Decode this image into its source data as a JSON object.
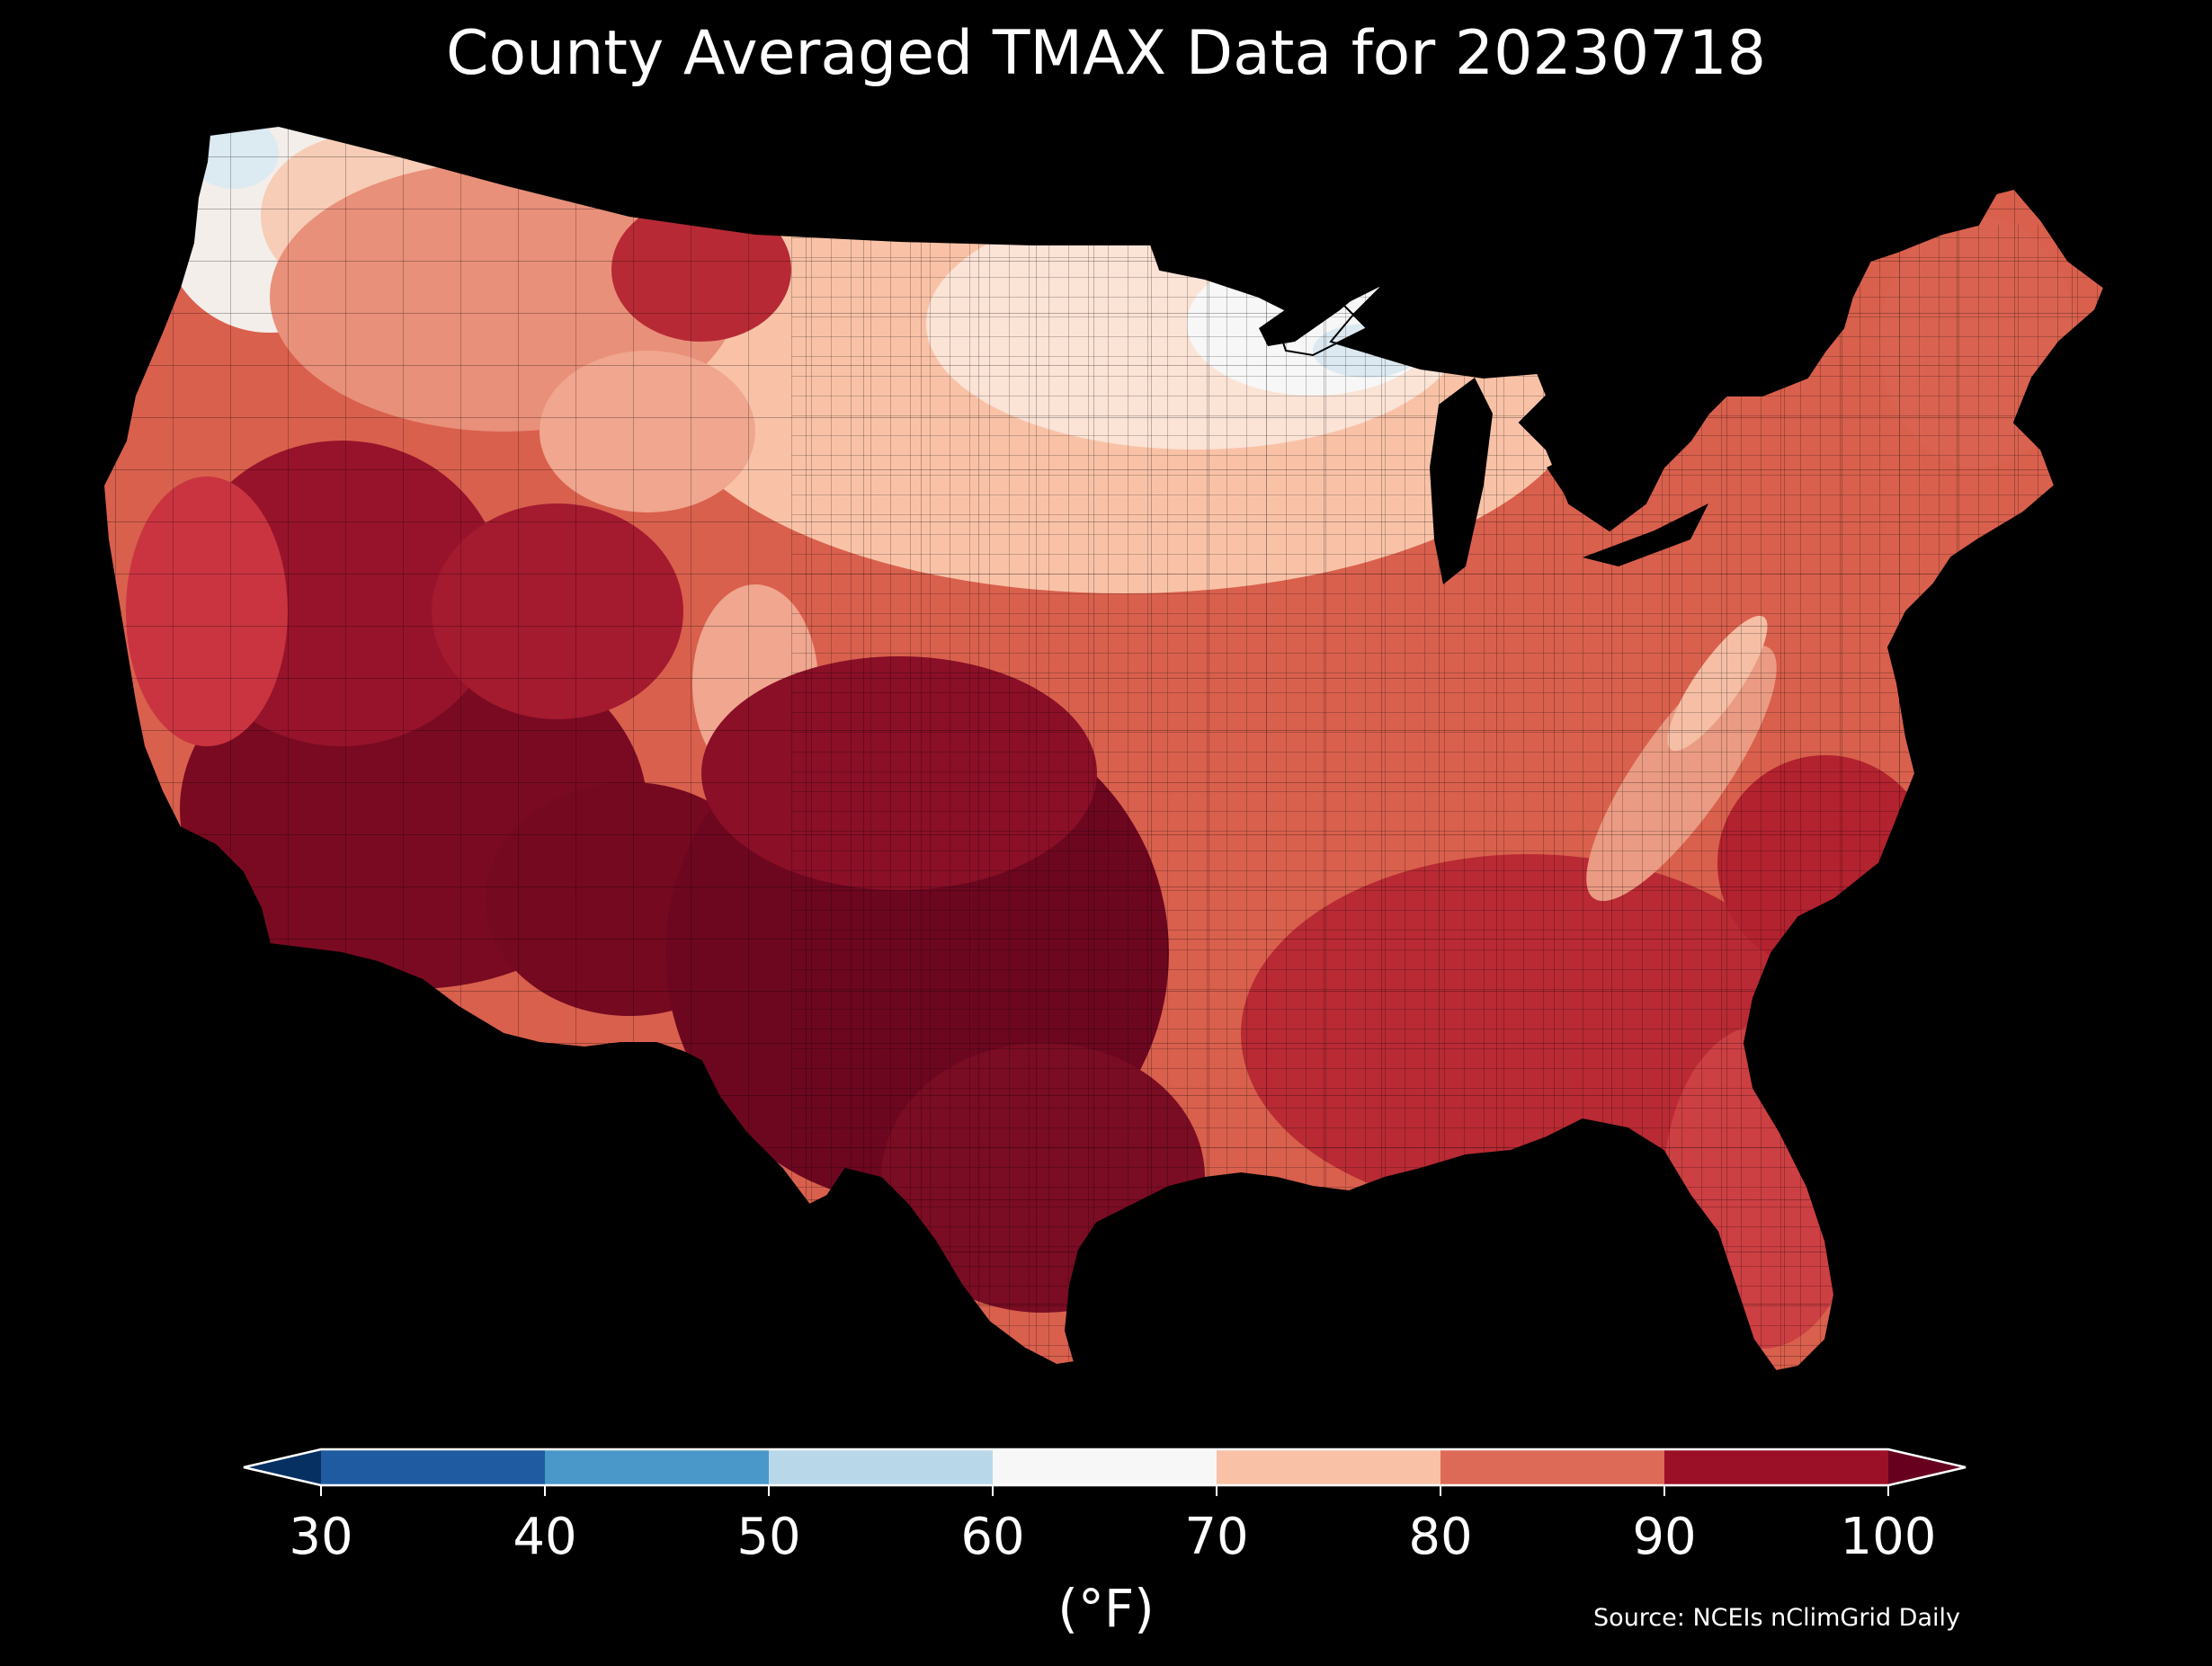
{
  "title": "County Averaged TMAX Data for 20230718",
  "map": {
    "region": "Contiguous United States",
    "variable": "TMAX",
    "ocean_color": "#000000",
    "border_color": "#000000"
  },
  "colorbar": {
    "ticks": [
      "30",
      "40",
      "50",
      "60",
      "70",
      "80",
      "90",
      "100"
    ],
    "unit_label": "(°F)",
    "bins": [
      {
        "from": 30,
        "to": 40,
        "color": "#1f5ba1"
      },
      {
        "from": 40,
        "to": 50,
        "color": "#4a98c9"
      },
      {
        "from": 50,
        "to": 60,
        "color": "#b8d8ea"
      },
      {
        "from": 60,
        "to": 70,
        "color": "#f7f7f7"
      },
      {
        "from": 70,
        "to": 80,
        "color": "#f9c2a7"
      },
      {
        "from": 80,
        "to": 90,
        "color": "#dc6a57"
      },
      {
        "from": 90,
        "to": 100,
        "color": "#9b1027"
      }
    ],
    "under_color": "#053061",
    "over_color": "#67001f",
    "frame_color": "#ffffff"
  },
  "source": "Source: NCEIs nClimGrid Daily"
}
